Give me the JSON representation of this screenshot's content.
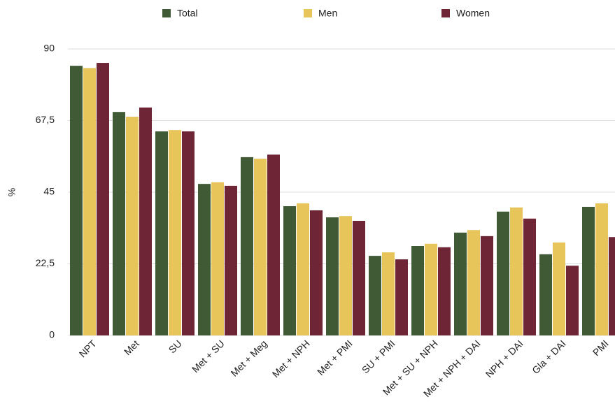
{
  "chart_data": {
    "type": "bar",
    "y_label": "%",
    "categories": [
      "NPT",
      "Met",
      "SU",
      "Met + SU",
      "Met + Meg",
      "Met + NPH",
      "Met + PMI",
      "SU + PMI",
      "Met + SU + NPH",
      "Met + NPH + DAI",
      "NPH + DAI",
      "Gla + DAI",
      "PMI"
    ],
    "series": [
      {
        "name": "Total",
        "color": "#3f5a35",
        "values": [
          84.7,
          70.2,
          64.1,
          47.6,
          56.0,
          40.6,
          37.1,
          25.0,
          28.1,
          32.3,
          38.9,
          25.5,
          40.4
        ]
      },
      {
        "name": "Men",
        "color": "#e8c55a",
        "values": [
          84.0,
          68.7,
          64.5,
          48.1,
          55.5,
          41.5,
          37.5,
          26.1,
          28.8,
          33.1,
          40.2,
          29.2,
          41.5
        ]
      },
      {
        "name": "Women",
        "color": "#6e2535",
        "values": [
          85.6,
          71.6,
          64.1,
          47.0,
          56.8,
          39.3,
          36.0,
          23.9,
          27.7,
          31.2,
          36.7,
          21.9,
          30.9
        ]
      }
    ],
    "ylim": [
      0,
      90
    ],
    "yticks": [
      0,
      {
        "value": 22.5,
        "label": "22,5"
      },
      45,
      {
        "value": 67.5,
        "label": "67,5"
      },
      90
    ],
    "grid": true,
    "legend": "top"
  }
}
